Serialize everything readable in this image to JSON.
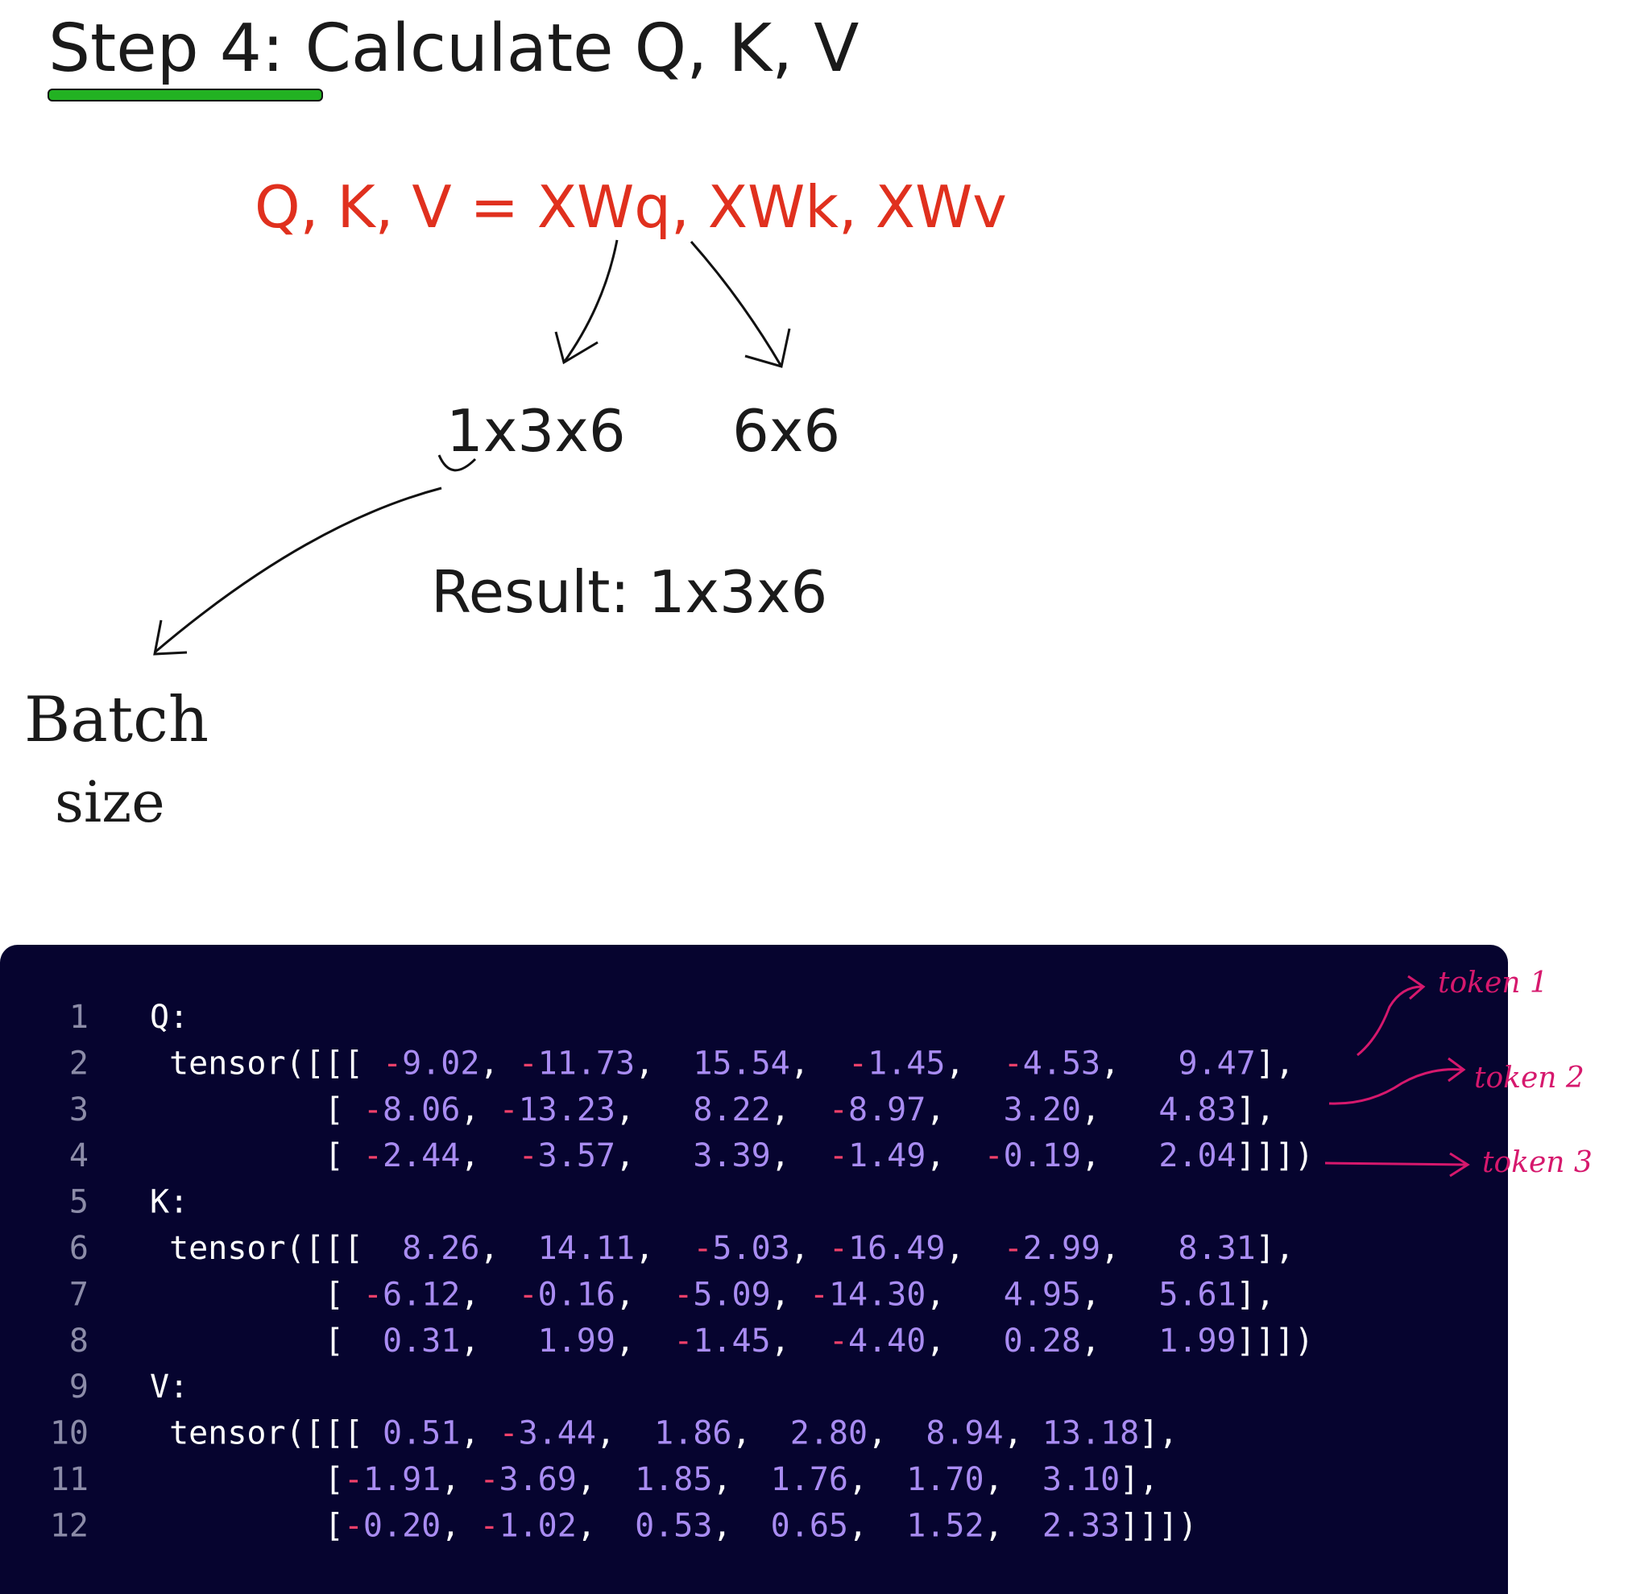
{
  "header": {
    "title": "Step 4: Calculate Q, K, V"
  },
  "formula": "Q, K, V = XWq, XWk, XWv",
  "shapes": {
    "input": "1x3x6",
    "weight": "6x6",
    "result": "Result: 1x3x6",
    "batch_note": [
      "Batch",
      "size"
    ]
  },
  "code": {
    "line_numbers": [
      "1",
      "2",
      "3",
      "4",
      "5",
      "6",
      "7",
      "8",
      "9",
      "10",
      "11",
      "12"
    ],
    "lines": [
      "Q:",
      " tensor([[[ -9.02, -11.73,  15.54,  -1.45,  -4.53,   9.47],",
      "         [ -8.06, -13.23,   8.22,  -8.97,   3.20,   4.83],",
      "         [ -2.44,  -3.57,   3.39,  -1.49,  -0.19,   2.04]]])",
      "K:",
      " tensor([[[  8.26,  14.11,  -5.03, -16.49,  -2.99,   8.31],",
      "         [ -6.12,  -0.16,  -5.09, -14.30,   4.95,   5.61],",
      "         [  0.31,   1.99,  -1.45,  -4.40,   0.28,   1.99]]])",
      "V:",
      " tensor([[[ 0.51, -3.44,  1.86,  2.80,  8.94, 13.18],",
      "         [-1.91, -3.69,  1.85,  1.76,  1.70,  3.10],",
      "         [-0.20, -1.02,  0.53,  0.65,  1.52,  2.33]]])"
    ]
  },
  "token_labels": [
    "token 1",
    "token 2",
    "token 3"
  ]
}
